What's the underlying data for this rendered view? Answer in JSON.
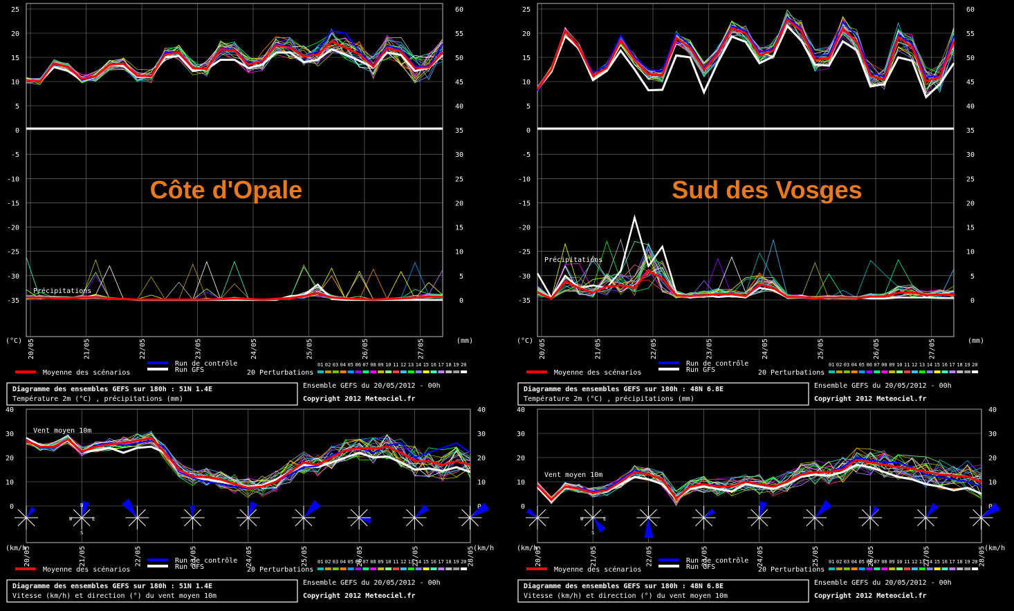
{
  "days": [
    "20/05",
    "21/05",
    "22/05",
    "23/05",
    "24/05",
    "25/05",
    "26/05",
    "27/05"
  ],
  "wind_days": [
    "20/05",
    "21/05",
    "22/05",
    "23/05",
    "24/05",
    "25/05",
    "26/05",
    "27/05",
    "28/05"
  ],
  "temp_left_axis": [
    "25",
    "20",
    "15",
    "10",
    "5",
    "0",
    "-5",
    "-10",
    "-15",
    "-20",
    "-25",
    "-30",
    "-35"
  ],
  "temp_right_axis": [
    "60",
    "55",
    "50",
    "45",
    "40",
    "35",
    "30",
    "25",
    "20",
    "15",
    "10",
    "5",
    "0"
  ],
  "wind_axis": [
    "40",
    "30",
    "20",
    "10",
    "0"
  ],
  "unit_temp": "(°C)",
  "unit_mm": "(mm)",
  "unit_kmh": "(km/h",
  "compass": {
    "n": "N",
    "s": "S",
    "w": "W",
    "e": "E"
  },
  "legend": {
    "mean": "Moyenne des scénarios",
    "control": "Run de contrôle",
    "gfs": "Run GFS",
    "perturbations": "20 Perturbations",
    "members": [
      "01",
      "02",
      "03",
      "04",
      "05",
      "06",
      "07",
      "08",
      "09",
      "10",
      "11",
      "12",
      "13",
      "14",
      "15",
      "16",
      "17",
      "18",
      "19",
      "20"
    ],
    "member_colors": [
      "#00c0c0",
      "#c0a000",
      "#80c000",
      "#ff8000",
      "#00a0ff",
      "#a000ff",
      "#00ff80",
      "#ff00ff",
      "#c0c000",
      "#80ff80",
      "#ff4040",
      "#40c0ff",
      "#00ff00",
      "#8080ff",
      "#ffff00",
      "#40ffc0",
      "#c080ff",
      "#c0c0c0",
      "#a0a0a0",
      "#ffffff"
    ]
  },
  "colors": {
    "mean": "#ff0000",
    "control": "#0000ff",
    "gfs": "#ffffff",
    "grid": "#808080",
    "region": "#e87a1e"
  },
  "panels": {
    "cote": {
      "region": "Côte d'Opale",
      "temp_box_title": "Diagramme des ensembles GEFS sur 180h : 51N 1.4E",
      "temp_box_sub": "Température 2m (°C) , précipitations (mm)",
      "wind_box_title": "Diagramme des ensembles GEFS sur 180h : 51N 1.4E",
      "wind_box_sub": "Vitesse (km/h) et direction (°) du vent moyen 10m",
      "ensemble": "Ensemble GEFS du 20/05/2012 - 00h",
      "copyright": "Copyright 2012 Meteociel.fr",
      "precip_label": "Précipitations",
      "wind_label": "Vent moyen 10m"
    },
    "vosges": {
      "region": "Sud des Vosges",
      "temp_box_title": "Diagramme des ensembles GEFS sur 180h : 48N 6.8E",
      "temp_box_sub": "Température 2m (°C) , précipitations (mm)",
      "wind_box_title": "Diagramme des ensembles GEFS sur 180h : 48N 6.8E",
      "wind_box_sub": "Vitesse (km/h) et direction (°) du vent moyen 10m",
      "ensemble": "Ensemble GEFS du 20/05/2012 - 00h",
      "copyright": "Copyright 2012 Meteociel.fr",
      "precip_label": "Précipitations",
      "wind_label": "Vent moyen 10m"
    }
  },
  "chart_data": [
    {
      "type": "line",
      "title": "Côte d'Opale",
      "ylabel": "(°C)",
      "ylim": [
        -35,
        25
      ],
      "y2label": "(mm)",
      "x": [
        0,
        6,
        12,
        18,
        24,
        30,
        36,
        42,
        48,
        54,
        60,
        66,
        72,
        78,
        84,
        90,
        96,
        102,
        108,
        114,
        120,
        126,
        132,
        138,
        144,
        150,
        156,
        162,
        168,
        174,
        180
      ],
      "series": [
        {
          "name": "Moyenne des scénarios",
          "values": [
            10.3,
            10,
            13.8,
            13,
            10.6,
            11.1,
            13.5,
            13.7,
            11.2,
            11.1,
            15.6,
            16,
            12.8,
            12.6,
            16.7,
            16.4,
            13.5,
            14.2,
            17.5,
            17,
            15.2,
            15.6,
            18.3,
            17,
            15.6,
            13.1,
            17,
            16.2,
            12.8,
            12.9,
            16
          ]
        },
        {
          "name": "Run GFS",
          "values": [
            10.3,
            10,
            13,
            12.2,
            10.3,
            11,
            13.5,
            13.2,
            11,
            11,
            15,
            15.3,
            12.2,
            12.6,
            14.5,
            14.5,
            12.8,
            13.5,
            16,
            16,
            14,
            14.5,
            16.7,
            15.6,
            14.3,
            12.9,
            16,
            15.5,
            12.2,
            12.8,
            15.5
          ]
        },
        {
          "name": "Run de contrôle",
          "values": [
            10.3,
            10,
            13.7,
            13.1,
            10.3,
            11,
            13.5,
            13.8,
            11.2,
            11,
            16,
            16.2,
            12.9,
            12.6,
            17,
            16.6,
            13.8,
            14,
            17.8,
            17.2,
            15.3,
            16.2,
            20.5,
            20,
            16.2,
            13.4,
            17.5,
            16.5,
            13.2,
            13.1,
            17.8
          ]
        }
      ],
      "precip_series": [
        {
          "name": "Moyenne des scénarios",
          "values": [
            0.5,
            0.5,
            0.4,
            0.4,
            0.5,
            0.6,
            0.3,
            0.2,
            0.1,
            0.1,
            0.1,
            0.1,
            0.1,
            0.1,
            0.2,
            0.3,
            0.2,
            0.1,
            0.2,
            0.4,
            0.8,
            1.4,
            0.5,
            0.3,
            0.2,
            0.1,
            0.2,
            0.3,
            0.5,
            0.7,
            0.6
          ]
        },
        {
          "name": "Run GFS",
          "values": [
            0.5,
            0.5,
            0.4,
            0.4,
            0.5,
            0.6,
            0.3,
            0.2,
            0,
            0,
            0,
            0,
            0,
            0,
            0,
            0,
            0,
            0,
            0,
            0.8,
            1,
            3.2,
            0.2,
            0,
            0,
            0,
            0,
            0,
            0,
            0,
            0
          ]
        }
      ]
    },
    {
      "type": "line",
      "title": "Sud des Vosges",
      "ylabel": "(°C)",
      "ylim": [
        -35,
        25
      ],
      "y2label": "(mm)",
      "x": [
        0,
        6,
        12,
        18,
        24,
        30,
        36,
        42,
        48,
        54,
        60,
        66,
        72,
        78,
        84,
        90,
        96,
        102,
        108,
        114,
        120,
        126,
        132,
        138,
        144,
        150,
        156,
        162,
        168,
        174,
        180
      ],
      "series": [
        {
          "name": "Moyenne des scénarios",
          "values": [
            8.5,
            12.5,
            20.5,
            17,
            11.2,
            12.8,
            18.5,
            14.5,
            11.5,
            11.3,
            19,
            17,
            12.5,
            15.8,
            21,
            20,
            15.5,
            16.4,
            22.8,
            20.5,
            14.5,
            14.8,
            21,
            18.2,
            11.2,
            10.4,
            19.2,
            17.2,
            10.1,
            11,
            18.3
          ]
        },
        {
          "name": "Run GFS",
          "values": [
            8.5,
            12,
            19.4,
            16.8,
            10.3,
            12.2,
            16.4,
            12.5,
            8.2,
            8.3,
            15.4,
            15,
            7.8,
            14,
            19.3,
            18.2,
            13.8,
            15.2,
            21.5,
            18.5,
            13.5,
            13.3,
            18.3,
            16.5,
            9,
            9.5,
            15,
            14.3,
            6.8,
            9.5,
            13.8
          ]
        },
        {
          "name": "Run de contrôle",
          "values": [
            8.2,
            12.5,
            20.7,
            17.2,
            11.8,
            13.4,
            19.5,
            15,
            12.5,
            12.2,
            20,
            17.5,
            13,
            16.2,
            21.5,
            20.5,
            16,
            16.8,
            23.2,
            21,
            15.3,
            15.5,
            22.3,
            19.5,
            11.8,
            11,
            19.7,
            17.8,
            10.9,
            11.2,
            19.5
          ]
        }
      ],
      "precip_series": [
        {
          "name": "Moyenne des scénarios",
          "values": [
            1.5,
            0.3,
            3.8,
            2.5,
            1.5,
            2.8,
            3,
            2.5,
            6,
            4.5,
            1,
            0.8,
            1,
            1.2,
            1.2,
            0.8,
            3.2,
            2.5,
            0.6,
            0.6,
            0.4,
            0.5,
            0.5,
            0.4,
            0.7,
            0.7,
            1.5,
            1.6,
            1,
            1.1,
            1.1
          ]
        },
        {
          "name": "Run GFS",
          "values": [
            5.5,
            0.5,
            5,
            2.5,
            3,
            2.5,
            6,
            17,
            7,
            11,
            1.5,
            0.5,
            1,
            0.6,
            0.8,
            0.5,
            2.5,
            2,
            0.5,
            0.5,
            0.4,
            0.5,
            0.5,
            0.5,
            0.3,
            0.3,
            0.5,
            0.5,
            0.5,
            0.4,
            0.4
          ]
        }
      ]
    },
    {
      "type": "line",
      "title": "Vent moyen 10m",
      "ylabel": "(km/h",
      "ylim": [
        0,
        40
      ],
      "x": [
        0,
        6,
        12,
        18,
        24,
        30,
        36,
        42,
        48,
        54,
        60,
        66,
        72,
        78,
        84,
        90,
        96,
        102,
        108,
        114,
        120,
        126,
        132,
        138,
        144,
        150,
        156,
        162,
        168,
        174,
        180,
        186,
        192
      ],
      "series": [
        {
          "name": "Moyenne des scénarios",
          "values": [
            27,
            24.5,
            24.5,
            27.5,
            22.5,
            24.5,
            25.5,
            26,
            27,
            28,
            22,
            15,
            12,
            12,
            11,
            9,
            7.5,
            8,
            10,
            14,
            18,
            17,
            20,
            23,
            24,
            23.5,
            24.5,
            22,
            18.5,
            18.5,
            17,
            18.5,
            17
          ]
        },
        {
          "name": "Run GFS",
          "values": [
            28,
            25,
            24.5,
            27,
            22,
            23,
            24,
            22,
            24,
            24.5,
            22,
            14,
            11.5,
            11,
            10,
            9,
            8,
            8.5,
            11,
            14,
            17,
            16,
            18,
            20,
            22,
            20,
            20.5,
            18,
            15,
            15.5,
            14.5,
            16,
            14
          ]
        },
        {
          "name": "Run de contrôle",
          "values": [
            27.5,
            24,
            24,
            27.5,
            22,
            25,
            26,
            25,
            26,
            27,
            24,
            14,
            11.5,
            10,
            9,
            8,
            7,
            8,
            10,
            13,
            16,
            16.5,
            21,
            23,
            24,
            22,
            25,
            26,
            20,
            22,
            24,
            26,
            22
          ]
        }
      ]
    },
    {
      "type": "line",
      "title": "Vent moyen 10m",
      "ylabel": "(km/h",
      "ylim": [
        0,
        40
      ],
      "x": [
        0,
        6,
        12,
        18,
        24,
        30,
        36,
        42,
        48,
        54,
        60,
        66,
        72,
        78,
        84,
        90,
        96,
        102,
        108,
        114,
        120,
        126,
        132,
        138,
        144,
        150,
        156,
        162,
        168,
        174,
        180,
        186,
        192
      ],
      "series": [
        {
          "name": "Moyenne des scénarios",
          "values": [
            8.5,
            2.5,
            8,
            7,
            5.5,
            6.5,
            10,
            14,
            13,
            11,
            3,
            8,
            9,
            8,
            8,
            10,
            9,
            8,
            10,
            13,
            14,
            14,
            15,
            19,
            18,
            17,
            16,
            15.5,
            14,
            13,
            12.5,
            12,
            10
          ]
        },
        {
          "name": "Run GFS",
          "values": [
            8,
            2,
            7.5,
            7,
            6,
            6,
            9,
            12,
            11,
            9,
            3,
            7,
            8,
            7,
            6,
            9,
            8,
            7,
            9,
            12,
            13,
            12.5,
            14,
            17,
            16,
            14,
            12,
            11,
            9,
            8,
            6.5,
            7.5,
            5
          ]
        },
        {
          "name": "Run de contrôle",
          "values": [
            8.5,
            2.5,
            8,
            7.5,
            6,
            7,
            11,
            15,
            13,
            11,
            3,
            8,
            9,
            8.5,
            8,
            10,
            9,
            8,
            10,
            13.5,
            14,
            14,
            16,
            20,
            19,
            18,
            18,
            16,
            13,
            12,
            11,
            10,
            8
          ]
        }
      ]
    }
  ]
}
